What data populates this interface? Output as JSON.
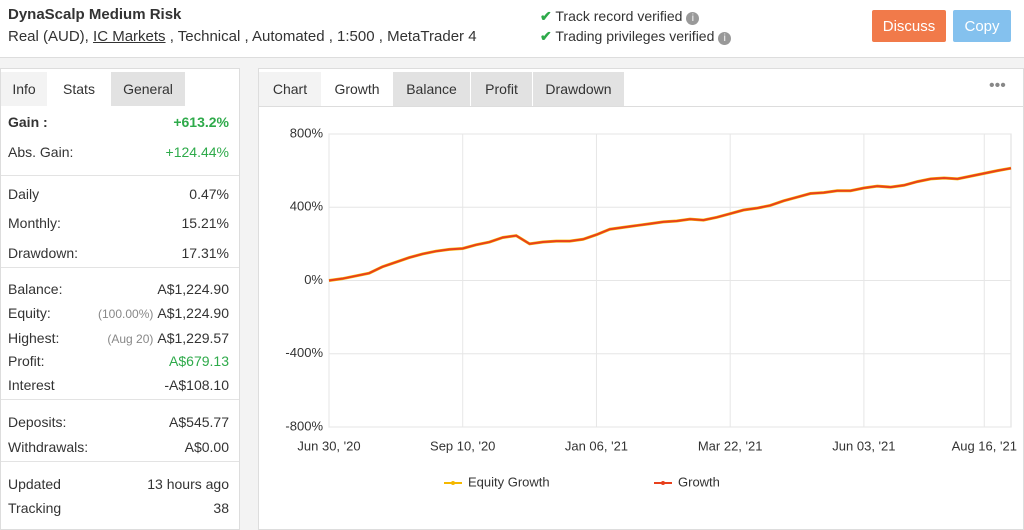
{
  "header": {
    "title": "DynaScalp Medium Risk",
    "subtitle_start": "Real (AUD),",
    "broker": "IC Markets",
    "subtitle_end": ", Technical , Automated , 1:500 , MetaTrader 4",
    "verified": [
      "Track record verified",
      "Trading privileges verified"
    ],
    "buttons": [
      "Discuss",
      "Copy"
    ]
  },
  "left_tabs": [
    "Info",
    "Stats",
    "General"
  ],
  "stats": [
    [
      {
        "label": "Gain :",
        "value": "+613.2%",
        "green": true,
        "bold": true
      },
      {
        "label": "Abs. Gain:",
        "value": "+124.44%",
        "green": true
      }
    ],
    [
      {
        "label": "Daily",
        "value": "0.47%"
      },
      {
        "label": "Monthly:",
        "value": "15.21%"
      },
      {
        "label": "Drawdown:",
        "value": "17.31%"
      }
    ],
    [
      {
        "label": "Balance:",
        "value": "A$1,224.90"
      },
      {
        "label": "Equity:",
        "note": "(100.00%)",
        "value": "A$1,224.90"
      },
      {
        "label": "Highest:",
        "note": "(Aug 20)",
        "value": "A$1,229.57"
      },
      {
        "label": "Profit:",
        "value": "A$679.13",
        "green": true
      },
      {
        "label": "Interest",
        "value": "-A$108.10"
      }
    ],
    [
      {
        "label": "Deposits:",
        "value": "A$545.77"
      },
      {
        "label": "Withdrawals:",
        "value": "A$0.00"
      }
    ],
    [
      {
        "label": "Updated",
        "value": "13 hours ago"
      },
      {
        "label": "Tracking",
        "value": "38"
      }
    ]
  ],
  "chart_tabs": [
    "Chart",
    "Growth",
    "Balance",
    "Profit",
    "Drawdown"
  ],
  "chart_data": {
    "type": "line",
    "categories": [
      "Jun 30, '20",
      null,
      null,
      null,
      null,
      null,
      null,
      null,
      null,
      null,
      "Sep 10, '20",
      null,
      null,
      null,
      null,
      null,
      null,
      null,
      null,
      null,
      "Jan 06, '21",
      null,
      null,
      null,
      null,
      null,
      null,
      null,
      null,
      null,
      "Mar 22, '21",
      null,
      null,
      null,
      null,
      null,
      null,
      null,
      null,
      null,
      "Jun 03, '21",
      null,
      null,
      null,
      null,
      null,
      null,
      null,
      null,
      "Aug 16, '21",
      null,
      null
    ],
    "series": [
      {
        "name": "Equity Growth",
        "color": "#f5b800",
        "values": [
          0,
          10,
          25,
          40,
          75,
          100,
          125,
          145,
          160,
          170,
          175,
          195,
          210,
          235,
          245,
          200,
          210,
          215,
          215,
          225,
          250,
          280,
          290,
          300,
          310,
          320,
          325,
          335,
          330,
          345,
          365,
          385,
          395,
          410,
          435,
          455,
          475,
          480,
          490,
          490,
          505,
          515,
          510,
          520,
          540,
          555,
          560,
          555,
          570,
          585,
          600,
          613.2
        ]
      },
      {
        "name": "Growth",
        "color": "#e8401c",
        "values": [
          0,
          10,
          25,
          40,
          75,
          100,
          125,
          145,
          160,
          170,
          175,
          195,
          210,
          235,
          245,
          200,
          210,
          215,
          215,
          225,
          250,
          280,
          290,
          300,
          310,
          320,
          325,
          335,
          330,
          345,
          365,
          385,
          395,
          410,
          435,
          455,
          475,
          480,
          490,
          490,
          505,
          515,
          510,
          520,
          540,
          555,
          560,
          555,
          570,
          585,
          600,
          613.2
        ]
      }
    ],
    "ylim": [
      -800,
      800
    ],
    "yticks": [
      {
        "value": 800,
        "label": "800%"
      },
      {
        "value": 400,
        "label": "400%"
      },
      {
        "value": 0,
        "label": "0%"
      },
      {
        "value": -400,
        "label": "-400%"
      },
      {
        "value": -800,
        "label": "-800%"
      }
    ],
    "grid": true
  }
}
